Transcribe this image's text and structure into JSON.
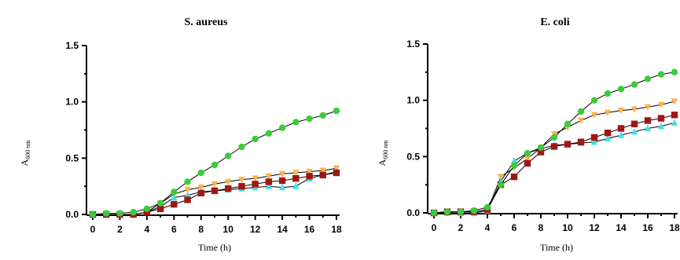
{
  "chart_data": [
    {
      "type": "line",
      "title": "S. aureus",
      "xlabel": "Time (h)",
      "ylabel_main": "A",
      "ylabel_sub": "600 nm",
      "xlim": [
        0,
        18
      ],
      "ylim": [
        0,
        1.5
      ],
      "xticks": [
        "0",
        "2",
        "4",
        "6",
        "8",
        "10",
        "12",
        "14",
        "16",
        "18"
      ],
      "yticks": [
        "0.0",
        "0.5",
        "1.0",
        "1.5"
      ],
      "grid": false,
      "x": [
        0,
        1,
        2,
        3,
        4,
        5,
        6,
        7,
        8,
        9,
        10,
        11,
        12,
        13,
        14,
        15,
        16,
        17,
        18
      ],
      "series": [
        {
          "color": "#3acc3a",
          "marker": "circle",
          "values": [
            0.0,
            0.01,
            0.01,
            0.02,
            0.05,
            0.1,
            0.2,
            0.29,
            0.37,
            0.44,
            0.52,
            0.6,
            0.67,
            0.72,
            0.77,
            0.82,
            0.85,
            0.88,
            0.92
          ]
        },
        {
          "color": "#ffb347",
          "marker": "triangle-down",
          "values": [
            0.0,
            0.0,
            0.0,
            0.0,
            0.02,
            0.1,
            0.18,
            0.22,
            0.24,
            0.27,
            0.29,
            0.31,
            0.32,
            0.34,
            0.36,
            0.37,
            0.38,
            0.39,
            0.41
          ]
        },
        {
          "color": "#40e0e8",
          "marker": "triangle-up",
          "values": [
            0.0,
            0.0,
            0.0,
            0.0,
            0.02,
            0.07,
            0.15,
            0.17,
            0.2,
            0.21,
            0.22,
            0.23,
            0.24,
            0.25,
            0.24,
            0.25,
            0.32,
            0.35,
            0.38
          ]
        },
        {
          "color": "#a01616",
          "marker": "square",
          "values": [
            0.0,
            0.0,
            0.0,
            0.0,
            0.02,
            0.05,
            0.09,
            0.13,
            0.19,
            0.21,
            0.23,
            0.25,
            0.27,
            0.29,
            0.3,
            0.32,
            0.34,
            0.35,
            0.37
          ]
        }
      ]
    },
    {
      "type": "line",
      "title": "E. coli",
      "xlabel": "Time (h)",
      "ylabel_main": "A",
      "ylabel_sub": "600 nm",
      "xlim": [
        0,
        18
      ],
      "ylim": [
        0,
        1.5
      ],
      "xticks": [
        "0",
        "2",
        "4",
        "6",
        "8",
        "10",
        "12",
        "14",
        "16",
        "18"
      ],
      "yticks": [
        "0.0",
        "0.5",
        "1.0",
        "1.5"
      ],
      "grid": false,
      "x": [
        0,
        1,
        2,
        3,
        4,
        5,
        6,
        7,
        8,
        9,
        10,
        11,
        12,
        13,
        14,
        15,
        16,
        17,
        18
      ],
      "series": [
        {
          "color": "#3acc3a",
          "marker": "circle",
          "values": [
            0.0,
            0.01,
            0.01,
            0.02,
            0.05,
            0.25,
            0.42,
            0.53,
            0.58,
            0.67,
            0.79,
            0.9,
            1.0,
            1.06,
            1.1,
            1.14,
            1.19,
            1.23,
            1.25
          ]
        },
        {
          "color": "#ffb347",
          "marker": "triangle-down",
          "values": [
            0.0,
            0.0,
            0.0,
            0.0,
            0.02,
            0.32,
            0.4,
            0.48,
            0.58,
            0.7,
            0.76,
            0.82,
            0.87,
            0.89,
            0.91,
            0.92,
            0.94,
            0.96,
            0.99
          ]
        },
        {
          "color": "#40e0e8",
          "marker": "triangle-up",
          "values": [
            0.0,
            0.0,
            0.0,
            0.0,
            0.02,
            0.28,
            0.46,
            0.53,
            0.57,
            0.6,
            0.61,
            0.62,
            0.63,
            0.66,
            0.69,
            0.72,
            0.75,
            0.77,
            0.8
          ]
        },
        {
          "color": "#a01616",
          "marker": "square",
          "values": [
            0.0,
            0.01,
            0.01,
            0.01,
            0.03,
            0.25,
            0.32,
            0.44,
            0.54,
            0.59,
            0.61,
            0.63,
            0.67,
            0.71,
            0.75,
            0.79,
            0.82,
            0.84,
            0.87
          ]
        }
      ]
    }
  ]
}
